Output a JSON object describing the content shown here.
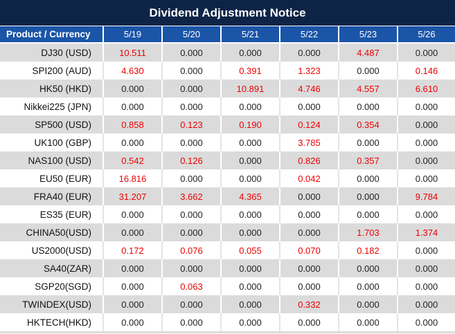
{
  "title": "Dividend Adjustment Notice",
  "columns": {
    "product_header": "Product / Currency",
    "dates": [
      "5/19",
      "5/20",
      "5/21",
      "5/22",
      "5/23",
      "5/26"
    ]
  },
  "rows": [
    {
      "product": "DJ30 (USD)",
      "values": [
        "10.511",
        "0.000",
        "0.000",
        "0.000",
        "4.487",
        "0.000"
      ]
    },
    {
      "product": "SPI200 (AUD)",
      "values": [
        "4.630",
        "0.000",
        "0.391",
        "1.323",
        "0.000",
        "0.146"
      ]
    },
    {
      "product": "HK50 (HKD)",
      "values": [
        "0.000",
        "0.000",
        "10.891",
        "4.746",
        "4.557",
        "6.610"
      ]
    },
    {
      "product": "Nikkei225 (JPN)",
      "values": [
        "0.000",
        "0.000",
        "0.000",
        "0.000",
        "0.000",
        "0.000"
      ]
    },
    {
      "product": "SP500 (USD)",
      "values": [
        "0.858",
        "0.123",
        "0.190",
        "0.124",
        "0.354",
        "0.000"
      ]
    },
    {
      "product": "UK100 (GBP)",
      "values": [
        "0.000",
        "0.000",
        "0.000",
        "3.785",
        "0.000",
        "0.000"
      ]
    },
    {
      "product": "NAS100 (USD)",
      "values": [
        "0.542",
        "0.126",
        "0.000",
        "0.826",
        "0.357",
        "0.000"
      ]
    },
    {
      "product": "EU50 (EUR)",
      "values": [
        "16.816",
        "0.000",
        "0.000",
        "0.042",
        "0.000",
        "0.000"
      ]
    },
    {
      "product": "FRA40 (EUR)",
      "values": [
        "31.207",
        "3.662",
        "4.365",
        "0.000",
        "0.000",
        "9.784"
      ]
    },
    {
      "product": "ES35 (EUR)",
      "values": [
        "0.000",
        "0.000",
        "0.000",
        "0.000",
        "0.000",
        "0.000"
      ]
    },
    {
      "product": "CHINA50(USD)",
      "values": [
        "0.000",
        "0.000",
        "0.000",
        "0.000",
        "1.703",
        "1.374"
      ]
    },
    {
      "product": "US2000(USD)",
      "values": [
        "0.172",
        "0.076",
        "0.055",
        "0.070",
        "0.182",
        "0.000"
      ]
    },
    {
      "product": "SA40(ZAR)",
      "values": [
        "0.000",
        "0.000",
        "0.000",
        "0.000",
        "0.000",
        "0.000"
      ]
    },
    {
      "product": "SGP20(SGD)",
      "values": [
        "0.000",
        "0.063",
        "0.000",
        "0.000",
        "0.000",
        "0.000"
      ]
    },
    {
      "product": "TWINDEX(USD)",
      "values": [
        "0.000",
        "0.000",
        "0.000",
        "0.332",
        "0.000",
        "0.000"
      ]
    },
    {
      "product": "HKTECH(HKD)",
      "values": [
        "0.000",
        "0.000",
        "0.000",
        "0.000",
        "0.000",
        "0.000"
      ]
    }
  ],
  "zero_value": "0.000",
  "colors": {
    "title_bg": "#0e2447",
    "header_bg": "#1b55a8",
    "row_alt_bg": "#dbdbdb",
    "row_bg": "#ffffff",
    "value_text": "#222222",
    "highlight_text": "#ee0000",
    "header_text": "#ffffff"
  }
}
